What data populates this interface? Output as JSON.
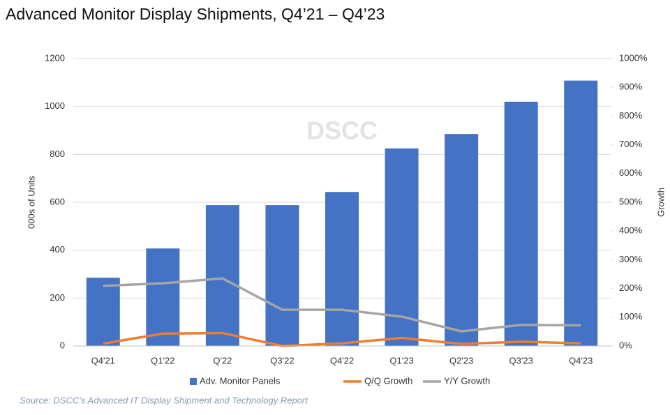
{
  "chart_data": {
    "type": "bar-line",
    "title": "Advanced Monitor Display Shipments, Q4’21 – Q4’23",
    "watermark": "DSCC",
    "source": "Source: DSCC’s Advanced IT Display Shipment and Technology Report",
    "y_label": "000s of Units",
    "y2_label": "Growth",
    "categories": [
      "Q4'21",
      "Q1'22",
      "Q'22",
      "Q3'22",
      "Q4'22",
      "Q1'23",
      "Q2'23",
      "Q3'23",
      "Q4'23"
    ],
    "series": [
      {
        "name": "Adv. Monitor Panels",
        "type": "bar",
        "color": "#4472c4",
        "values": [
          285,
          407,
          588,
          588,
          643,
          825,
          885,
          1020,
          1108
        ]
      },
      {
        "name": "Q/Q Growth",
        "type": "line",
        "axis": "y2",
        "color": "#ed7d31",
        "values": [
          8,
          43,
          45,
          0,
          9,
          28,
          7,
          15,
          9
        ]
      },
      {
        "name": "Y/Y Growth",
        "type": "line",
        "axis": "y2",
        "color": "#a5a5a5",
        "values": [
          209,
          218,
          235,
          126,
          126,
          102,
          51,
          73,
          72
        ]
      }
    ],
    "ylim": [
      0,
      1200
    ],
    "yticks": [
      0,
      200,
      400,
      600,
      800,
      1000,
      1200
    ],
    "y2lim": [
      0,
      1000
    ],
    "y2ticks": [
      {
        "value": 0,
        "label": "0%"
      },
      {
        "value": 100,
        "label": "100%"
      },
      {
        "value": 200,
        "label": "200%"
      },
      {
        "value": 300,
        "label": "300%"
      },
      {
        "value": 400,
        "label": "400%"
      },
      {
        "value": 500,
        "label": "500%"
      },
      {
        "value": 600,
        "label": "600%"
      },
      {
        "value": 700,
        "label": "700%"
      },
      {
        "value": 800,
        "label": "800%"
      },
      {
        "value": 900,
        "label": "900%"
      },
      {
        "value": 1000,
        "label": "1000%"
      }
    ],
    "grid": true,
    "legend": "bottom"
  }
}
